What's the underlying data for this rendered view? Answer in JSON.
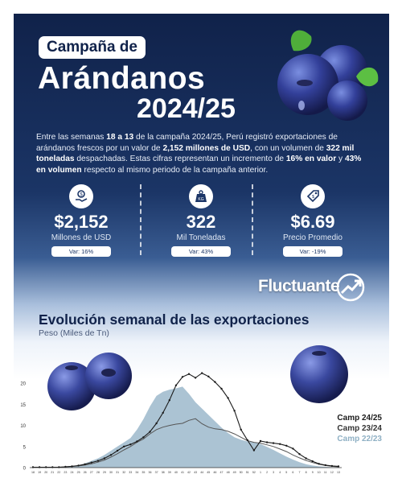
{
  "header": {
    "badge": "Campaña de",
    "title_line1": "Arándanos",
    "title_line2": "2024/25"
  },
  "intro": {
    "p1": "Entre las semanas ",
    "weeks": "18 a 13",
    "p2": " de la campaña 2024/25, Perú registró exportaciones de arándanos frescos por un valor de ",
    "value": "2,152 millones de USD",
    "p3": ", con un volumen de ",
    "volume": "322 mil toneladas",
    "p4": " despachadas. Estas cifras representan un incremento de ",
    "inc_value": "16% en valor",
    "p5": " y ",
    "inc_volume": "43% en volumen",
    "p6": " respecto al mismo periodo de la campaña anterior."
  },
  "stats": [
    {
      "icon": "money-hand-icon",
      "value": "$2,152",
      "label": "Millones de USD",
      "var": "Var: 16%"
    },
    {
      "icon": "weight-icon",
      "value": "322",
      "label": "Mil Toneladas",
      "var": "Var: 43%"
    },
    {
      "icon": "price-tag-icon",
      "value": "$6.69",
      "label": "Precio Promedio",
      "var": "Var: -19%"
    }
  ],
  "brand": {
    "name": "Fluctuante",
    "icon": "trend-arrow-icon"
  },
  "colors": {
    "navy": "#10224a",
    "area": "#9cb9cb",
    "line24": "#1a1a1a",
    "line23": "#555555",
    "legend22": "#9cb9cb"
  },
  "chart_data": {
    "type": "line",
    "title": "Evolución semanal de las exportaciones",
    "ylabel": "Peso (Miles de Tn)",
    "ylim": [
      0,
      25
    ],
    "yticks": [
      0,
      5,
      10,
      15,
      20
    ],
    "x": [
      "18",
      "19",
      "20",
      "21",
      "22",
      "23",
      "24",
      "25",
      "26",
      "27",
      "28",
      "29",
      "30",
      "31",
      "32",
      "33",
      "34",
      "35",
      "36",
      "37",
      "38",
      "39",
      "40",
      "41",
      "42",
      "43",
      "44",
      "45",
      "46",
      "47",
      "48",
      "49",
      "50",
      "51",
      "52",
      "1",
      "2",
      "3",
      "4",
      "5",
      "6",
      "7",
      "8",
      "9",
      "10",
      "11",
      "12",
      "13"
    ],
    "series": [
      {
        "name": "Camp 24/25",
        "style": "line-markers",
        "values": [
          0.1,
          0.1,
          0.1,
          0.1,
          0.1,
          0.2,
          0.3,
          0.5,
          0.8,
          1.2,
          1.6,
          2.2,
          3.0,
          4.0,
          5.0,
          5.5,
          6.2,
          7.2,
          8.5,
          10.5,
          13.0,
          16.0,
          19.5,
          21.5,
          22.2,
          21.3,
          22.4,
          21.6,
          20.3,
          18.7,
          16.5,
          13.5,
          9.0,
          6.5,
          4.1,
          6.3,
          6.0,
          5.8,
          5.6,
          5.2,
          4.5,
          3.2,
          2.2,
          1.5,
          0.9,
          0.6,
          0.4,
          0.3
        ]
      },
      {
        "name": "Camp 23/24",
        "style": "line",
        "values": [
          0.1,
          0.1,
          0.1,
          0.1,
          0.1,
          0.2,
          0.3,
          0.4,
          0.6,
          0.9,
          1.3,
          1.8,
          2.5,
          3.3,
          4.2,
          5.0,
          6.0,
          6.8,
          8.0,
          9.0,
          9.6,
          10.0,
          10.3,
          10.5,
          11.2,
          11.6,
          10.4,
          9.6,
          9.2,
          9.0,
          8.6,
          8.0,
          7.2,
          6.4,
          6.0,
          5.8,
          5.4,
          5.0,
          4.4,
          3.8,
          3.0,
          2.3,
          1.7,
          1.2,
          0.8,
          0.5,
          0.3,
          0.2
        ]
      },
      {
        "name": "Camp 22/23",
        "style": "area",
        "values": [
          0.1,
          0.1,
          0.1,
          0.1,
          0.1,
          0.2,
          0.3,
          0.5,
          1.0,
          1.6,
          2.2,
          3.0,
          4.0,
          5.0,
          6.0,
          7.0,
          9.0,
          11.5,
          14.5,
          17.0,
          18.0,
          18.5,
          18.8,
          19.2,
          17.5,
          15.5,
          14.0,
          12.5,
          11.0,
          9.5,
          8.2,
          7.2,
          6.6,
          6.2,
          6.0,
          5.6,
          4.9,
          4.2,
          3.4,
          2.6,
          1.9,
          1.3,
          0.8,
          0.5,
          0.3,
          0.2,
          0.1,
          0.1
        ]
      }
    ],
    "legend_position": "bottom-right",
    "grid": false
  }
}
